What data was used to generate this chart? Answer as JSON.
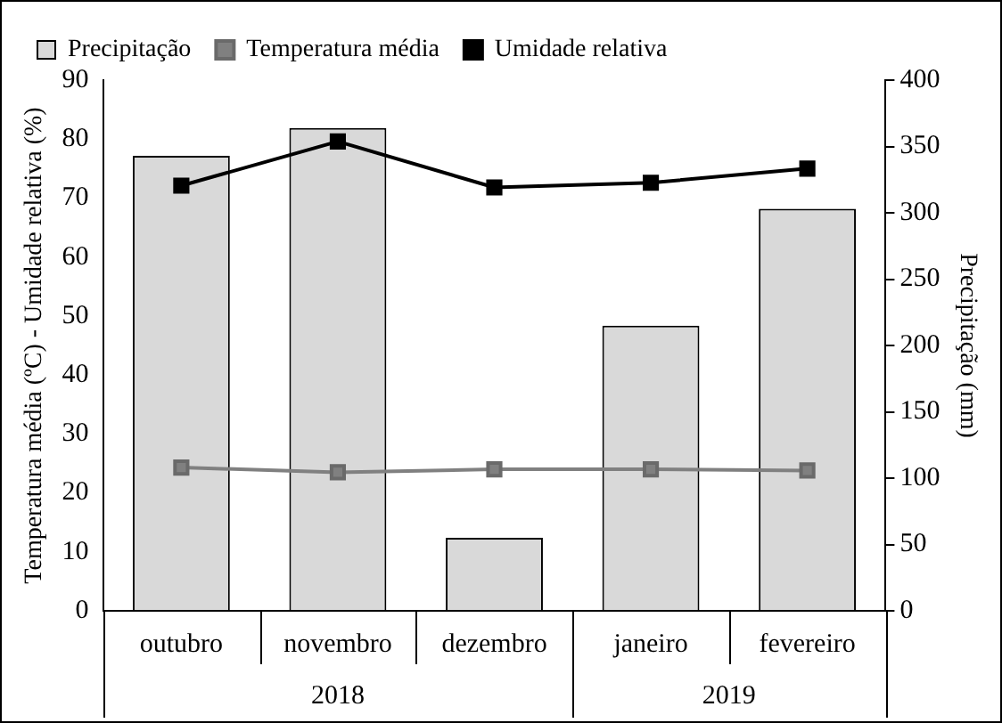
{
  "chart_data": {
    "type": "bar",
    "categories": [
      "outubro",
      "novembro",
      "dezembro",
      "janeiro",
      "fevereiro"
    ],
    "series": [
      {
        "name": "Precipitação",
        "axis": "y2",
        "color": "#d9d9d9",
        "values": [
          343,
          364,
          55,
          215,
          303
        ]
      },
      {
        "name": "Temperatura média",
        "type": "line",
        "color": "#808080",
        "values": [
          24.3,
          23.5,
          24.0,
          24.0,
          23.8
        ]
      },
      {
        "name": "Umidade relativa",
        "type": "line",
        "color": "#000000",
        "values": [
          72.1,
          79.6,
          71.8,
          72.6,
          75.0
        ]
      }
    ],
    "ylabel": "Temperatura média (ºC) - Umidade relativa (%)",
    "y2label": "Precipitação (mm)",
    "ylim": [
      0,
      90
    ],
    "yticks": [
      0,
      10,
      20,
      30,
      40,
      50,
      60,
      70,
      80,
      90
    ],
    "y2lim": [
      0,
      400
    ],
    "y2ticks": [
      0,
      50,
      100,
      150,
      200,
      250,
      300,
      350,
      400
    ],
    "annotations": [
      "2018",
      "2019"
    ],
    "legend": "top",
    "marker": "square",
    "line_style": "solid",
    "grid": false
  }
}
